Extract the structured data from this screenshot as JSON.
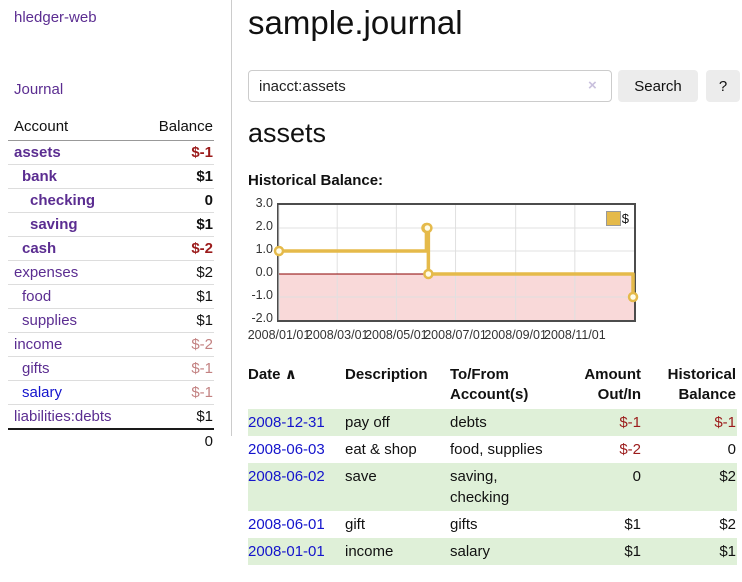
{
  "app": {
    "title": "hledger-web"
  },
  "sidebar": {
    "nav_journal": "Journal",
    "table": {
      "headers": [
        "Account",
        "Balance"
      ],
      "rows": [
        {
          "name": "assets",
          "depth": 0,
          "bold": true,
          "balance": "$-1",
          "balance_style": "neg"
        },
        {
          "name": "bank",
          "depth": 1,
          "bold": true,
          "balance": "$1",
          "balance_style": "pos"
        },
        {
          "name": "checking",
          "depth": 2,
          "bold": true,
          "balance": "0",
          "balance_style": "pos"
        },
        {
          "name": "saving",
          "depth": 2,
          "bold": true,
          "balance": "$1",
          "balance_style": "pos"
        },
        {
          "name": "cash",
          "depth": 1,
          "bold": true,
          "balance": "$-2",
          "balance_style": "neg"
        },
        {
          "name": "expenses",
          "depth": 0,
          "bold": false,
          "balance": "$2",
          "balance_style": "pos"
        },
        {
          "name": "food",
          "depth": 1,
          "bold": false,
          "balance": "$1",
          "balance_style": "pos"
        },
        {
          "name": "supplies",
          "depth": 1,
          "bold": false,
          "balance": "$1",
          "balance_style": "pos"
        },
        {
          "name": "income",
          "depth": 0,
          "bold": false,
          "balance": "$-2",
          "balance_style": "neg-soft"
        },
        {
          "name": "gifts",
          "depth": 1,
          "bold": false,
          "balance": "$-1",
          "balance_style": "neg-soft"
        },
        {
          "name": "salary",
          "depth": 1,
          "bold": false,
          "link_style": "blue",
          "balance": "$-1",
          "balance_style": "neg-soft"
        },
        {
          "name": "liabilities:debts",
          "depth": 0,
          "bold": false,
          "balance": "$1",
          "balance_style": "pos"
        }
      ],
      "total": "0"
    }
  },
  "main": {
    "title": "sample.journal",
    "search": {
      "value": "inacct:assets",
      "clear_icon": "×",
      "search_button": "Search",
      "help_button": "?"
    },
    "account_heading": "assets",
    "chart_heading": "Historical Balance:"
  },
  "chart_data": {
    "type": "line",
    "style": "step-after",
    "title": "Historical Balance",
    "xrange": [
      "2008-01-01",
      "2009-01-01"
    ],
    "ylim": [
      -2.0,
      3.0
    ],
    "yticks": [
      3.0,
      2.0,
      1.0,
      0.0,
      -1.0,
      -2.0
    ],
    "xtick_labels": [
      "2008/01/01",
      "2008/03/01",
      "2008/05/01",
      "2008/07/01",
      "2008/09/01",
      "2008/11/01"
    ],
    "grid": true,
    "legend_position": "top-right",
    "series": [
      {
        "name": "$",
        "color": "#e5ba4a",
        "marker_fill": "#fffce8",
        "points": [
          [
            "2008-01-01",
            1
          ],
          [
            "2008-06-01",
            2
          ],
          [
            "2008-06-02",
            2
          ],
          [
            "2008-06-03",
            0
          ],
          [
            "2008-12-31",
            -1
          ]
        ]
      }
    ],
    "negative_region_color": "#f9d9d9",
    "zero_line_color": "#8b0000",
    "grid_color": "#e0e0e0"
  },
  "register": {
    "sort_icon": "∧",
    "headers": {
      "date": "Date",
      "description": "Description",
      "accounts": "To/From Account(s)",
      "amount": "Amount Out/In",
      "balance": "Historical Balance"
    },
    "rows": [
      {
        "date": "2008-12-31",
        "description": "pay off",
        "accounts": "debts",
        "amount": "$-1",
        "amount_style": "neg",
        "balance": "$-1",
        "balance_style": "neg"
      },
      {
        "date": "2008-06-03",
        "description": "eat & shop",
        "accounts": "food, supplies",
        "amount": "$-2",
        "amount_style": "neg",
        "balance": "0",
        "balance_style": "pos"
      },
      {
        "date": "2008-06-02",
        "description": "save",
        "accounts": "saving, checking",
        "amount": "0",
        "amount_style": "pos",
        "balance": "$2",
        "balance_style": "pos"
      },
      {
        "date": "2008-06-01",
        "description": "gift",
        "accounts": "gifts",
        "amount": "$1",
        "amount_style": "pos",
        "balance": "$2",
        "balance_style": "pos"
      },
      {
        "date": "2008-01-01",
        "description": "income",
        "accounts": "salary",
        "amount": "$1",
        "amount_style": "pos",
        "balance": "$1",
        "balance_style": "pos"
      }
    ]
  },
  "colors": {
    "link_purple": "#5b2d91",
    "link_blue": "#1414cc",
    "negative_strong": "#9b1b1b",
    "negative_soft": "#c38282",
    "row_stripe_green": "#dff0d8",
    "chart_line_gold": "#e5ba4a",
    "chart_negative_pink": "#f9d9d9",
    "chart_zero_line": "#8b0000",
    "button_gray": "#ececec"
  }
}
